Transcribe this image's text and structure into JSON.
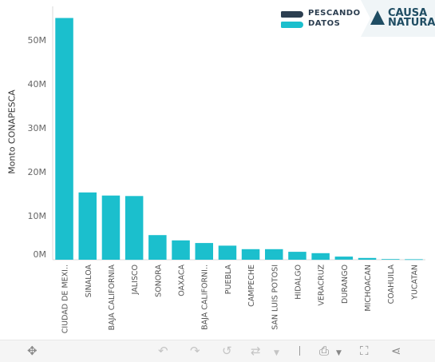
{
  "chart_data": {
    "type": "bar",
    "ylabel": "Monto CONAPESCA",
    "yticks": [
      "0M",
      "10M",
      "20M",
      "30M",
      "40M",
      "50M"
    ],
    "ylim": [
      0,
      58
    ],
    "units": "M",
    "bar_color": "#1bbfcd",
    "categories": [
      "CIUDAD DE MEXI..",
      "SINALOA",
      "BAJA CALIFORNIA",
      "JALISCO",
      "SONORA",
      "OAXACA",
      "BAJA CALIFORNI..",
      "PUEBLA",
      "CAMPECHE",
      "SAN LUIS POTOSI",
      "HIDALGO",
      "VERACRUZ",
      "DURANGO",
      "MICHOACAN",
      "COAHUILA",
      "YUCATAN"
    ],
    "values": [
      55.0,
      15.3,
      14.6,
      14.5,
      5.6,
      4.4,
      3.8,
      3.2,
      2.4,
      2.4,
      1.8,
      1.5,
      0.7,
      0.4,
      0.15,
      0.1
    ]
  },
  "logos": {
    "pescando": [
      "PESCANDO",
      "DATOS"
    ],
    "causa": [
      "CAUSA",
      "NATURA"
    ]
  },
  "toolbar": {
    "icons": [
      "move-icon",
      "undo-icon",
      "redo-icon",
      "revert-icon",
      "refresh-icon",
      "download-icon",
      "fullscreen-icon",
      "share-icon"
    ]
  }
}
